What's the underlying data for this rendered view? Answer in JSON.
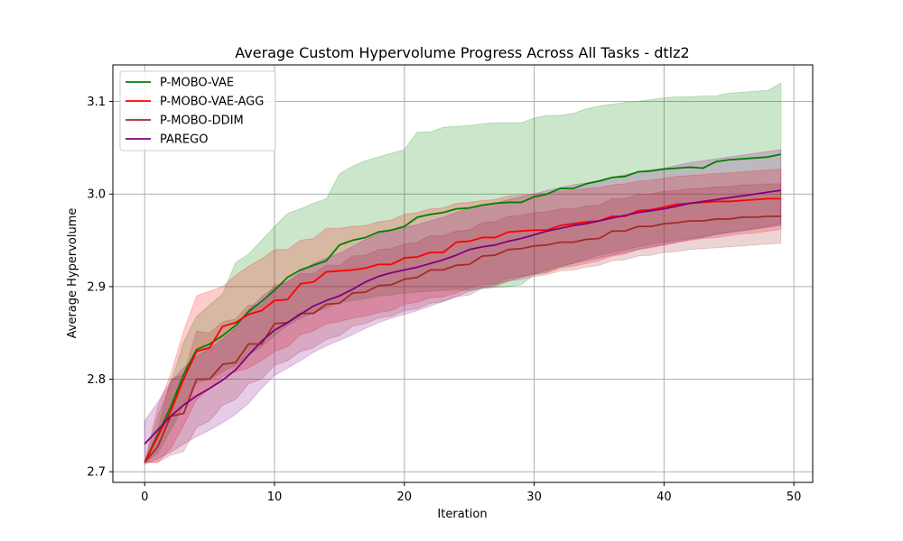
{
  "chart_data": {
    "type": "line",
    "title": "Average Custom Hypervolume Progress Across All Tasks - dtlz2",
    "xlabel": "Iteration",
    "ylabel": "Average Hypervolume",
    "xlim": [
      -2.45,
      51.45
    ],
    "ylim": [
      2.6885,
      3.1395
    ],
    "xticks": [
      "0",
      "10",
      "20",
      "30",
      "40",
      "50"
    ],
    "yticks": [
      "2.7",
      "2.8",
      "2.9",
      "3.0",
      "3.1"
    ],
    "grid": true,
    "legend_position": "top-left",
    "x": [
      0,
      1,
      2,
      3,
      4,
      5,
      6,
      7,
      8,
      9,
      10,
      11,
      12,
      13,
      14,
      15,
      16,
      17,
      18,
      19,
      20,
      21,
      22,
      23,
      24,
      25,
      26,
      27,
      28,
      29,
      30,
      31,
      32,
      33,
      34,
      35,
      36,
      37,
      38,
      39,
      40,
      41,
      42,
      43,
      44,
      45,
      46,
      47,
      48,
      49
    ],
    "series": [
      {
        "name": "P-MOBO-VAE",
        "color": "#008000",
        "values": [
          2.71,
          2.74,
          2.77,
          2.805,
          2.832,
          2.838,
          2.847,
          2.858,
          2.873,
          2.884,
          2.896,
          2.91,
          2.918,
          2.923,
          2.928,
          2.945,
          2.95,
          2.953,
          2.959,
          2.961,
          2.965,
          2.975,
          2.978,
          2.98,
          2.984,
          2.985,
          2.988,
          2.99,
          2.991,
          2.991,
          2.997,
          3.0,
          3.006,
          3.006,
          3.011,
          3.014,
          3.018,
          3.019,
          3.024,
          3.025,
          3.027,
          3.028,
          3.029,
          3.028,
          3.035,
          3.037,
          3.038,
          3.039,
          3.04,
          3.043
        ],
        "lower": [
          2.71,
          2.72,
          2.745,
          2.772,
          2.796,
          2.8,
          2.808,
          2.815,
          2.826,
          2.835,
          2.847,
          2.858,
          2.866,
          2.872,
          2.877,
          2.883,
          2.885,
          2.887,
          2.89,
          2.891,
          2.893,
          2.894,
          2.895,
          2.896,
          2.897,
          2.896,
          2.898,
          2.899,
          2.9,
          2.902,
          2.913,
          2.916,
          2.921,
          2.925,
          2.93,
          2.934,
          2.937,
          2.94,
          2.943,
          2.946,
          2.948,
          2.95,
          2.952,
          2.954,
          2.957,
          2.959,
          2.961,
          2.963,
          2.965,
          2.968
        ],
        "upper": [
          2.71,
          2.76,
          2.795,
          2.84,
          2.868,
          2.88,
          2.892,
          2.926,
          2.935,
          2.95,
          2.965,
          2.979,
          2.984,
          2.99,
          2.995,
          3.022,
          3.03,
          3.036,
          3.04,
          3.044,
          3.048,
          3.067,
          3.067,
          3.072,
          3.073,
          3.074,
          3.076,
          3.077,
          3.077,
          3.077,
          3.082,
          3.085,
          3.085,
          3.087,
          3.092,
          3.095,
          3.097,
          3.099,
          3.1,
          3.102,
          3.104,
          3.105,
          3.105,
          3.106,
          3.106,
          3.109,
          3.11,
          3.111,
          3.112,
          3.12
        ]
      },
      {
        "name": "P-MOBO-VAE-AGG",
        "color": "#ff0000",
        "values": [
          2.71,
          2.738,
          2.765,
          2.8,
          2.83,
          2.834,
          2.857,
          2.861,
          2.87,
          2.874,
          2.885,
          2.886,
          2.903,
          2.905,
          2.916,
          2.917,
          2.918,
          2.92,
          2.924,
          2.924,
          2.931,
          2.932,
          2.937,
          2.937,
          2.948,
          2.949,
          2.953,
          2.953,
          2.959,
          2.96,
          2.961,
          2.961,
          2.966,
          2.968,
          2.97,
          2.971,
          2.976,
          2.976,
          2.982,
          2.983,
          2.986,
          2.989,
          2.99,
          2.991,
          2.992,
          2.992,
          2.993,
          2.994,
          2.995,
          2.995
        ],
        "lower": [
          2.71,
          2.71,
          2.725,
          2.75,
          2.778,
          2.79,
          2.803,
          2.808,
          2.812,
          2.82,
          2.83,
          2.835,
          2.848,
          2.852,
          2.86,
          2.862,
          2.866,
          2.868,
          2.872,
          2.874,
          2.881,
          2.883,
          2.888,
          2.889,
          2.893,
          2.898,
          2.902,
          2.903,
          2.909,
          2.911,
          2.913,
          2.915,
          2.92,
          2.922,
          2.925,
          2.928,
          2.933,
          2.935,
          2.94,
          2.942,
          2.945,
          2.948,
          2.95,
          2.952,
          2.953,
          2.955,
          2.957,
          2.958,
          2.96,
          2.962
        ],
        "upper": [
          2.71,
          2.77,
          2.805,
          2.852,
          2.89,
          2.895,
          2.9,
          2.912,
          2.922,
          2.93,
          2.94,
          2.94,
          2.95,
          2.952,
          2.963,
          2.963,
          2.965,
          2.966,
          2.97,
          2.972,
          2.978,
          2.98,
          2.984,
          2.985,
          2.99,
          2.991,
          2.993,
          2.994,
          2.998,
          2.999,
          3.0,
          3.001,
          3.003,
          3.004,
          3.006,
          3.007,
          3.01,
          3.011,
          3.014,
          3.015,
          3.017,
          3.019,
          3.02,
          3.021,
          3.022,
          3.023,
          3.024,
          3.025,
          3.026,
          3.027
        ]
      },
      {
        "name": "P-MOBO-DDIM",
        "color": "#a52a2a",
        "values": [
          2.71,
          2.727,
          2.76,
          2.763,
          2.8,
          2.8,
          2.816,
          2.818,
          2.838,
          2.838,
          2.86,
          2.861,
          2.871,
          2.871,
          2.881,
          2.882,
          2.893,
          2.894,
          2.901,
          2.902,
          2.908,
          2.91,
          2.918,
          2.918,
          2.923,
          2.924,
          2.933,
          2.934,
          2.94,
          2.941,
          2.944,
          2.945,
          2.948,
          2.948,
          2.951,
          2.952,
          2.96,
          2.96,
          2.965,
          2.965,
          2.968,
          2.969,
          2.971,
          2.971,
          2.973,
          2.973,
          2.975,
          2.975,
          2.976,
          2.976
        ],
        "lower": [
          2.71,
          2.71,
          2.718,
          2.722,
          2.748,
          2.755,
          2.772,
          2.778,
          2.795,
          2.8,
          2.815,
          2.82,
          2.83,
          2.834,
          2.843,
          2.847,
          2.857,
          2.86,
          2.866,
          2.868,
          2.874,
          2.876,
          2.882,
          2.884,
          2.889,
          2.891,
          2.898,
          2.9,
          2.906,
          2.908,
          2.911,
          2.913,
          2.917,
          2.918,
          2.921,
          2.923,
          2.928,
          2.929,
          2.933,
          2.934,
          2.937,
          2.938,
          2.94,
          2.941,
          2.942,
          2.943,
          2.944,
          2.945,
          2.946,
          2.947
        ],
        "upper": [
          2.71,
          2.745,
          2.8,
          2.805,
          2.852,
          2.85,
          2.862,
          2.865,
          2.88,
          2.88,
          2.902,
          2.904,
          2.914,
          2.914,
          2.923,
          2.923,
          2.933,
          2.934,
          2.94,
          2.941,
          2.946,
          2.948,
          2.955,
          2.955,
          2.96,
          2.961,
          2.969,
          2.97,
          2.976,
          2.977,
          2.98,
          2.981,
          2.984,
          2.984,
          2.987,
          2.988,
          2.995,
          2.995,
          3.0,
          3.0,
          3.003,
          3.004,
          3.006,
          3.006,
          3.008,
          3.008,
          3.01,
          3.01,
          3.011,
          3.011
        ]
      },
      {
        "name": "PAREGO",
        "color": "#800080",
        "values": [
          2.73,
          2.745,
          2.76,
          2.772,
          2.782,
          2.79,
          2.799,
          2.81,
          2.826,
          2.841,
          2.853,
          2.861,
          2.87,
          2.879,
          2.885,
          2.89,
          2.897,
          2.905,
          2.911,
          2.915,
          2.918,
          2.921,
          2.925,
          2.929,
          2.934,
          2.94,
          2.943,
          2.945,
          2.949,
          2.952,
          2.956,
          2.96,
          2.963,
          2.966,
          2.968,
          2.971,
          2.974,
          2.977,
          2.98,
          2.982,
          2.984,
          2.987,
          2.99,
          2.992,
          2.994,
          2.996,
          2.998,
          3.0,
          3.002,
          3.004
        ],
        "lower": [
          2.708,
          2.714,
          2.721,
          2.73,
          2.738,
          2.745,
          2.753,
          2.762,
          2.774,
          2.79,
          2.804,
          2.812,
          2.82,
          2.829,
          2.836,
          2.842,
          2.848,
          2.855,
          2.861,
          2.866,
          2.87,
          2.874,
          2.879,
          2.884,
          2.889,
          2.895,
          2.899,
          2.902,
          2.906,
          2.91,
          2.914,
          2.918,
          2.922,
          2.925,
          2.928,
          2.931,
          2.934,
          2.937,
          2.94,
          2.943,
          2.945,
          2.948,
          2.951,
          2.953,
          2.956,
          2.958,
          2.96,
          2.962,
          2.964,
          2.966
        ],
        "upper": [
          2.755,
          2.775,
          2.797,
          2.812,
          2.825,
          2.833,
          2.843,
          2.855,
          2.875,
          2.889,
          2.899,
          2.906,
          2.916,
          2.925,
          2.931,
          2.936,
          2.943,
          2.951,
          2.957,
          2.961,
          2.964,
          2.967,
          2.971,
          2.975,
          2.98,
          2.985,
          2.988,
          2.99,
          2.994,
          2.997,
          3.0,
          3.004,
          3.007,
          3.01,
          3.012,
          3.015,
          3.018,
          3.021,
          3.024,
          3.026,
          3.028,
          3.031,
          3.034,
          3.036,
          3.038,
          3.04,
          3.042,
          3.044,
          3.046,
          3.048
        ]
      }
    ]
  }
}
